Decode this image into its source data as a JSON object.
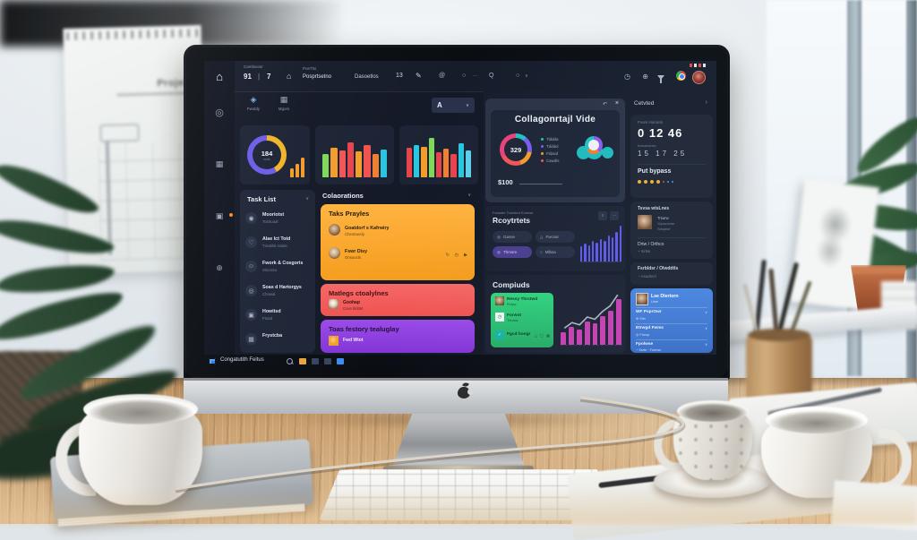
{
  "scene": {
    "flipchart_title": "Project"
  },
  "icons": {
    "home": "⌂",
    "app_window": "⌂",
    "pencil": "✎",
    "at": "@",
    "circle": "○",
    "q_menu": "Q",
    "dots": "···",
    "chevron_down": "∨",
    "chevron_right": "›",
    "pipe": "|",
    "clock": "◷",
    "globe": "⊕",
    "undo": "↶",
    "close": "×",
    "chip_grid": "◈",
    "chip_table": "▦",
    "target": "◎",
    "task_user": "◉",
    "task_heart": "♡",
    "task_smile": "☺",
    "task_group": "◎",
    "task_card": "▣",
    "task_calendar": "▦",
    "refresh": "↻",
    "send": "▶",
    "triangle": "△",
    "square": "▢",
    "grid": "▦",
    "check": "✓",
    "plus": "⊕",
    "person": "◔",
    "menu": "≡"
  },
  "colors": {
    "accent_purple": "#6c5ce7",
    "accent_yellow": "#f0b429",
    "accent_orange": "#f9a62a",
    "accent_red": "#f05858",
    "accent_violet": "#8e3fe0",
    "accent_green": "#2fcf7a",
    "accent_blue": "#4a86e0",
    "accent_teal": "#1fbdbd",
    "accent_magenta": "#c93fb2",
    "bars_blue": "#5f58ee"
  },
  "screen": {
    "topbar": {
      "section_label": "Cambioosr",
      "count_a": "91",
      "count_b": "7",
      "menu_top": "PoeTlsi",
      "menu_bottom": "Posprtsetno",
      "menu_2": "Dasoetlos",
      "badge": "13"
    },
    "toolbar": {
      "chip1": "Fwoldy",
      "chip2": "Mgors",
      "dropdown": "A"
    },
    "overview": {
      "donut_value": "184",
      "donut_label": "wots"
    },
    "tasklist": {
      "title": "Task List",
      "items": [
        {
          "title": "Mooriotst",
          "sub": "Tosrtuoal"
        },
        {
          "title": "Alae Ict Totd",
          "sub": "Tmablst soiats"
        },
        {
          "title": "Fwork & Cosgoris",
          "sub": "Slocstco"
        },
        {
          "title": "Soas d Hartorgys",
          "sub": "Chnwal"
        },
        {
          "title": "Howitsd",
          "sub": "Ftoad"
        },
        {
          "title": "Frystcba",
          "sub": ""
        }
      ]
    },
    "colorations": {
      "title": "Colaorations",
      "card_orange": {
        "title": "Taks Prayles",
        "rows": [
          {
            "name": "Goatdorf s Kafrwiry",
            "sub": "Chestowcly"
          },
          {
            "name": "Fswr Disy",
            "sub": "Onsoucls"
          }
        ]
      },
      "card_red": {
        "title": "Matlegs ctoalylnes",
        "rows": [
          {
            "name": "Goohap",
            "sub": "Cove blddnt"
          }
        ]
      },
      "card_purple": {
        "title": "Toas festory tealuglay",
        "rows": [
          {
            "name": "Fwd Wtot",
            "sub": ""
          }
        ]
      }
    },
    "modal": {
      "title": "Collagonrtajl Vide",
      "donut_value": "329",
      "legend": [
        "Tlddda",
        "Tdddol",
        "Fldasd",
        "Cawdls"
      ],
      "price": "$100"
    },
    "reports": {
      "eyebrow": "Fwaater Toersted Eroewe",
      "title": "Rcoytrtets",
      "filters": [
        "Gasse",
        "Fwcsar",
        "Thmsre",
        "Mlbsa"
      ],
      "active_filter": "Thmsre"
    },
    "compots": {
      "title": "Compiuds",
      "rows": [
        {
          "name": "Ressy Thrctwd",
          "sub": "Rctyw"
        },
        {
          "name": "Forwot",
          "sub": "Throsw"
        },
        {
          "name": "Fgcd hoogr",
          "sub": ""
        }
      ]
    },
    "rightpanel": {
      "header": "Cetvted",
      "stats": {
        "label": "Fvom Homets",
        "big": "0 12 46",
        "sub": "hososronec",
        "row2": "15 17 25",
        "highlight": "Put bypass"
      },
      "card_a": {
        "title": "Tsvsa wtsLnes",
        "line1": "Trsarw",
        "line2": "Yqoscuvse",
        "line3": "Srtcplse",
        "footer": "Drtw / Orthco",
        "footer_sub": "mrtse"
      },
      "card_b": {
        "title": "Fsrbldsr / Olwddtls",
        "row": "Asodrecl"
      },
      "card_blue": {
        "name": "Lse Dlertorn",
        "role": "Ume",
        "rows": [
          {
            "title": "WF PsprOwr",
            "sub": "Srtc"
          },
          {
            "title": "Etrwgd Fwmc",
            "sub": "Frmsp"
          },
          {
            "title": "Fpolwse",
            "sub": "Ssrte · Fohrws"
          }
        ]
      }
    },
    "taskbar": {
      "label": "Congatutith Feitus"
    }
  },
  "charts": {
    "donut_small": {
      "type": "donut",
      "value": 184,
      "segments": [
        [
          "#f0b429",
          150
        ],
        [
          "#6c5ce7",
          210
        ]
      ]
    },
    "mini_bars": {
      "type": "bar",
      "values": [
        34,
        55,
        80
      ],
      "colors": "#f39c2b"
    },
    "bars_a": {
      "type": "bar",
      "values": [
        55,
        68,
        62,
        82,
        60,
        75,
        55,
        65
      ],
      "colors": [
        "#7ed957",
        "#f39c2b",
        "#f25555",
        "#e8434d",
        "#f39c2b",
        "#ef5350",
        "#f07f2e",
        "#2bc5e0"
      ]
    },
    "bars_b": {
      "type": "bar",
      "values": [
        68,
        74,
        70,
        92,
        58,
        66,
        54,
        80,
        62
      ],
      "colors": [
        "#e8434d",
        "#2bc5e0",
        "#f39c2b",
        "#7ed957",
        "#e8434d",
        "#f07f2e",
        "#e8434d",
        "#2bc5e0",
        "#5bd0e8"
      ]
    },
    "donut_modal": {
      "type": "donut",
      "value": 329,
      "segments": [
        [
          "#20c3c0",
          40
        ],
        [
          "#7a5cf0",
          60
        ],
        [
          "#f39c2b",
          60
        ],
        [
          "#f25555",
          80
        ],
        [
          "#e8437a",
          120
        ]
      ]
    },
    "bars_blue": {
      "type": "bar",
      "values": [
        34,
        40,
        36,
        46,
        42,
        50,
        46,
        58,
        54,
        66,
        80
      ],
      "colors": "#5f58ee"
    },
    "bars_magenta": {
      "type": "bar",
      "values": [
        22,
        32,
        28,
        42,
        38,
        52,
        62,
        82
      ],
      "colors": "#c93fb2",
      "line": true
    }
  }
}
